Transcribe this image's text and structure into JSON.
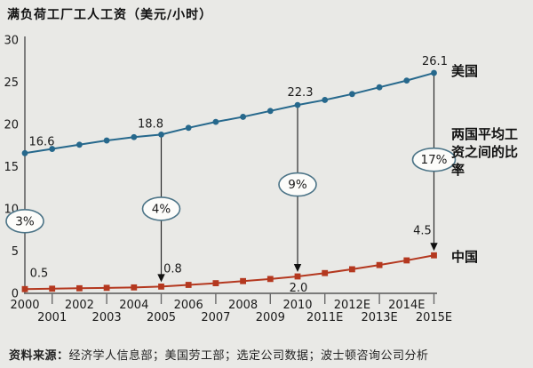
{
  "title": "满负荷工厂工人工资（美元/小时）",
  "legend": {
    "us": "美国",
    "china": "中国",
    "ratio_note": "两国平均工资之间的比率"
  },
  "source": {
    "label": "资料来源：",
    "text": "经济学人信息部；美国劳工部；选定公司数据；波士顿咨询公司分析"
  },
  "colors": {
    "us_line": "#26688c",
    "china_line": "#b4381f",
    "ellipse_stroke": "#4c7487",
    "axis": "#6b6b6b",
    "background": "#e9e9e6"
  },
  "chart_data": {
    "type": "line",
    "title": "满负荷工厂工人工资（美元/小时）",
    "x": [
      "2000",
      "2001",
      "2002",
      "2003",
      "2004",
      "2005",
      "2006",
      "2007",
      "2008",
      "2009",
      "2010",
      "2011E",
      "2012E",
      "2013E",
      "2014E",
      "2015E"
    ],
    "series": [
      {
        "name": "美国",
        "color": "#26688c",
        "marker": "circle",
        "values": [
          16.6,
          17.1,
          17.6,
          18.1,
          18.5,
          18.8,
          19.6,
          20.3,
          20.9,
          21.6,
          22.3,
          22.9,
          23.6,
          24.4,
          25.2,
          26.1
        ]
      },
      {
        "name": "中国",
        "color": "#b4381f",
        "marker": "square",
        "values": [
          0.5,
          0.55,
          0.6,
          0.65,
          0.7,
          0.8,
          1.0,
          1.2,
          1.45,
          1.7,
          2.0,
          2.4,
          2.85,
          3.35,
          3.9,
          4.5
        ]
      }
    ],
    "labeled_points": [
      {
        "x": "2000",
        "us": "16.6",
        "china": "0.5",
        "ratio": "3%"
      },
      {
        "x": "2005",
        "us": "18.8",
        "china": "0.8",
        "ratio": "4%"
      },
      {
        "x": "2010",
        "us": "22.3",
        "china": "2.0",
        "ratio": "9%"
      },
      {
        "x": "2015E",
        "us": "26.1",
        "china": "4.5",
        "ratio": "17%"
      }
    ],
    "annotation_meaning": "两国平均工资之间的比率",
    "ylim": [
      0,
      30
    ],
    "yticks": [
      0,
      5,
      10,
      15,
      20,
      25,
      30
    ],
    "grid": false,
    "legend_position": "right"
  }
}
